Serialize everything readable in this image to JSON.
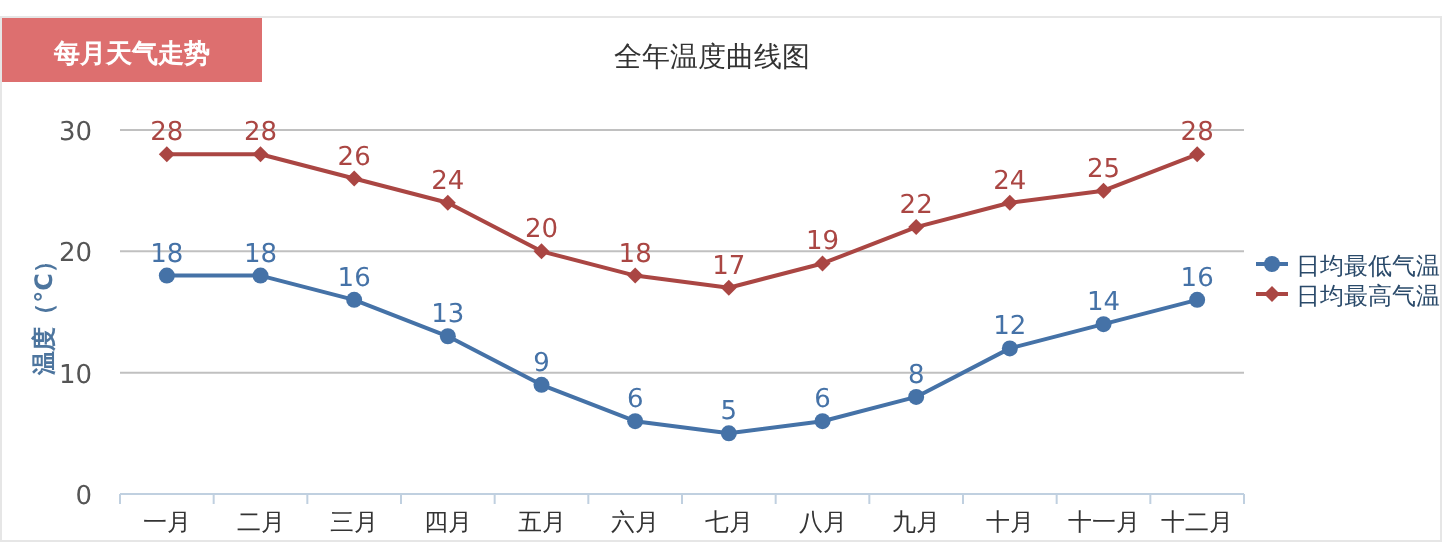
{
  "chart_data": {
    "type": "line",
    "title": "全年温度曲线图",
    "annotations": [
      "每月天气走势"
    ],
    "ylabel": "温度（°C）",
    "categories": [
      "一月",
      "二月",
      "三月",
      "四月",
      "五月",
      "六月",
      "七月",
      "八月",
      "九月",
      "十月",
      "十一月",
      "十二月"
    ],
    "series": [
      {
        "name": "日均最低气温",
        "color": "#4572a7",
        "marker": "circle",
        "values": [
          18,
          18,
          16,
          13,
          9,
          6,
          5,
          6,
          8,
          12,
          14,
          16
        ]
      },
      {
        "name": "日均最高气温",
        "color": "#aa4643",
        "marker": "diamond",
        "values": [
          28,
          28,
          26,
          24,
          20,
          18,
          17,
          19,
          22,
          24,
          25,
          28
        ]
      }
    ],
    "ylim": [
      0,
      30
    ],
    "yticks": [
      0,
      10,
      20,
      30
    ],
    "grid": "y",
    "legend": "right",
    "data_labels": true
  }
}
